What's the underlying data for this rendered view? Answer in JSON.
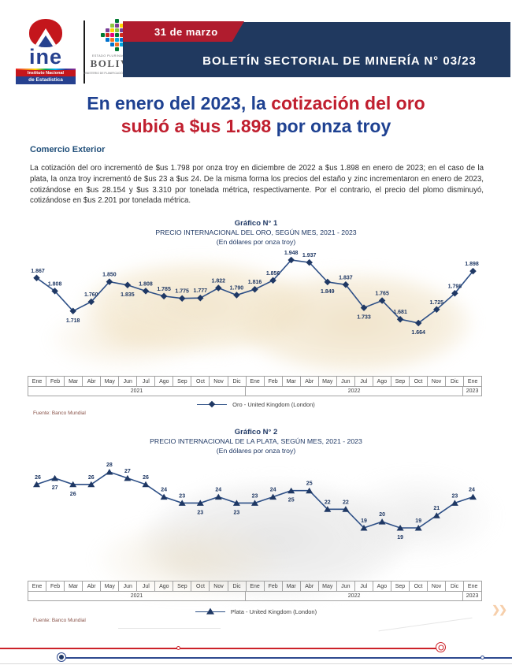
{
  "header": {
    "date_ribbon": "31 de marzo",
    "bulletin_title": "BOLETÍN SECTORIAL DE MINERÍA N° 03/23",
    "ine_logo": {
      "acronym": "ine",
      "line1": "Instituto Nacional",
      "line2": "de Estadística"
    },
    "bolivia_logo": {
      "small_text": "ESTADO PLURINACIONAL DE",
      "name": "BOLIVIA",
      "ministry": "MINISTERIO DE PLANIFICACIÓN DEL DESARROLLO"
    }
  },
  "headline": {
    "l1_blue": "En enero del 2023, la",
    "l1_red": "cotización del oro",
    "l2_red": "subió a $us 1.898",
    "l2_blue": "por onza troy"
  },
  "section_heading": "Comercio Exterior",
  "paragraph": "La cotización del oro incrementó de $us 1.798 por onza troy en diciembre de 2022 a $us 1.898 en enero de 2023; en el caso de la plata, la onza troy incrementó de $us 23 a $us 24. De la misma forma los precios del estaño y zinc incrementaron en enero de 2023, cotizándose en $us 28.154 y $us 3.310 por tonelada métrica, respectivamente. Por el contrario, el precio del plomo disminuyó, cotizándose en $us 2.201 por tonelada métrica.",
  "colors": {
    "banner_blue": "#20395f",
    "ribbon_red": "#b01c2e",
    "headline_blue": "#1e4191",
    "headline_red": "#c01f2f",
    "chart_navy": "#1f3864",
    "chart_line": "#2d4f86",
    "footer_red": "#cc2229",
    "footer_blue": "#2e4a8f",
    "mosaic_palette": [
      "#d52b1e",
      "#f37021",
      "#ffd500",
      "#007a33",
      "#0072ce",
      "#7b3f98",
      "#e6007e",
      "#00a9e0",
      "#8dc63f"
    ]
  },
  "chart_data": [
    {
      "type": "line",
      "title": "Gráfico N° 1",
      "subtitle": "PRECIO INTERNACIONAL DEL ORO, SEGÚN MES, 2021 - 2023",
      "unit": "(En dólares por onza troy)",
      "legend_label": "Oro - United Kingdom (London)",
      "marker": "diamond",
      "source": "Fuente: Banco Mundial",
      "categories": [
        "Ene",
        "Feb",
        "Mar",
        "Abr",
        "May",
        "Jun",
        "Jul",
        "Ago",
        "Sep",
        "Oct",
        "Nov",
        "Dic",
        "Ene",
        "Feb",
        "Mar",
        "Abr",
        "May",
        "Jun",
        "Jul",
        "Ago",
        "Sep",
        "Oct",
        "Nov",
        "Dic",
        "Ene"
      ],
      "year_groups": [
        {
          "label": "2021",
          "months": 12
        },
        {
          "label": "2022",
          "months": 12
        },
        {
          "label": "2023",
          "months": 1
        }
      ],
      "values": [
        1867,
        1808,
        1718,
        1760,
        1850,
        1835,
        1808,
        1785,
        1775,
        1777,
        1822,
        1790,
        1816,
        1856,
        1948,
        1937,
        1849,
        1837,
        1733,
        1765,
        1681,
        1664,
        1725,
        1798,
        1898
      ],
      "labels": [
        "1.867",
        "1.808",
        "1.718",
        "1.760",
        "1.850",
        "1.835",
        "1.808",
        "1.785",
        "1.775",
        "1.777",
        "1.822",
        "1.790",
        "1.816",
        "1.856",
        "1.948",
        "1.937",
        "1.849",
        "1.837",
        "1.733",
        "1.765",
        "1.681",
        "1.664",
        "1.725",
        "1.798",
        "1.898"
      ],
      "label_below_indices": [
        2,
        5,
        16,
        18,
        21
      ],
      "ylim": [
        1650,
        1960
      ],
      "grid": false,
      "legend_position": "bottom"
    },
    {
      "type": "line",
      "title": "Gráfico N° 2",
      "subtitle": "PRECIO INTERNACIONAL DE LA PLATA, SEGÚN MES, 2021 - 2023",
      "unit": "(En dólares por onza troy)",
      "legend_label": "Plata - United Kingdom (London)",
      "marker": "triangle",
      "source": "Fuente: Banco Mundial",
      "categories": [
        "Ene",
        "Feb",
        "Mar",
        "Abr",
        "May",
        "Jun",
        "Jul",
        "Ago",
        "Sep",
        "Oct",
        "Nov",
        "Dic",
        "Ene",
        "Feb",
        "Mar",
        "Abr",
        "May",
        "Jun",
        "Jul",
        "Ago",
        "Sep",
        "Oct",
        "Nov",
        "Dic",
        "Ene"
      ],
      "year_groups": [
        {
          "label": "2021",
          "months": 12
        },
        {
          "label": "2022",
          "months": 12
        },
        {
          "label": "2023",
          "months": 1
        }
      ],
      "values": [
        26,
        27,
        26,
        26,
        28,
        27,
        26,
        24,
        23,
        23,
        24,
        23,
        23,
        24,
        25,
        25,
        22,
        22,
        19,
        20,
        19,
        19,
        21,
        23,
        24
      ],
      "labels": [
        "26",
        "27",
        "26",
        "26",
        "28",
        "27",
        "26",
        "24",
        "23",
        "23",
        "24",
        "23",
        "23",
        "24",
        "25",
        "25",
        "22",
        "22",
        "19",
        "20",
        "19",
        "19",
        "21",
        "23",
        "24"
      ],
      "label_below_indices": [
        1,
        2,
        9,
        11,
        14,
        20
      ],
      "ylim": [
        17,
        29
      ],
      "grid": false,
      "legend_position": "bottom"
    }
  ]
}
